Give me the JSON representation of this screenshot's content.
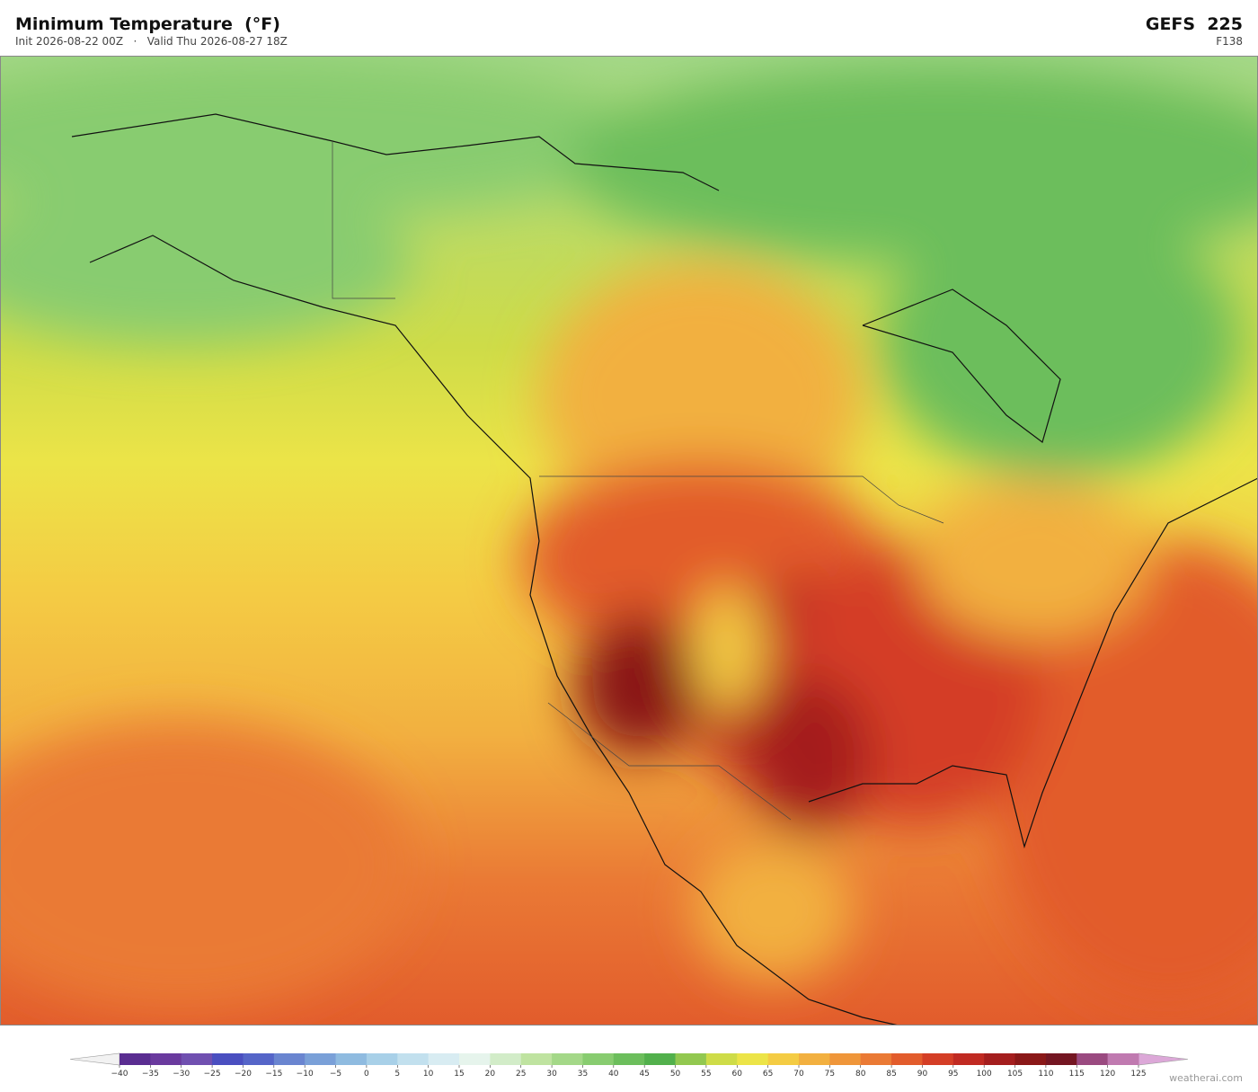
{
  "header": {
    "title": "Minimum Temperature  (°F)",
    "subtitle": "Init 2026-08-22 00Z   ·   Valid Thu 2026-08-27 18Z",
    "model": "GEFS  225",
    "forecast_hour": "F138"
  },
  "colorbar": {
    "ticks": [
      {
        "value": -40,
        "label": "−40"
      },
      {
        "value": -35,
        "label": "−35"
      },
      {
        "value": -30,
        "label": "−30"
      },
      {
        "value": -25,
        "label": "−25"
      },
      {
        "value": -20,
        "label": "−20"
      },
      {
        "value": -15,
        "label": "−15"
      },
      {
        "value": -10,
        "label": "−10"
      },
      {
        "value": -5,
        "label": "−5"
      },
      0,
      5,
      10,
      15,
      20,
      25,
      30,
      35,
      40,
      45,
      50,
      55,
      60,
      65,
      70,
      75,
      80,
      85,
      90,
      95,
      100,
      105,
      110,
      115,
      120,
      125
    ],
    "colors": [
      "#5a2d91",
      "#6a3a9e",
      "#7050b0",
      "#4a4fc0",
      "#5565c8",
      "#6a85d0",
      "#7aa0d8",
      "#8fbbe0",
      "#a8d0e8",
      "#c2e0ee",
      "#d8ecf2",
      "#e6f4ec",
      "#d2ecc8",
      "#bfe3a0",
      "#a4d888",
      "#88cc70",
      "#6cbe5c",
      "#52b04c",
      "#92c850",
      "#cedc48",
      "#ece448",
      "#f4cc44",
      "#f2b040",
      "#ef963a",
      "#ea7a35",
      "#e25c2c",
      "#d43e26",
      "#c02a22",
      "#a41e1e",
      "#8a1818",
      "#741622",
      "#9a4a80",
      "#c07ab0"
    ],
    "under_color": "#f2f2f2",
    "over_color": "#dca8d8"
  },
  "watermark": "weatherai.com"
}
